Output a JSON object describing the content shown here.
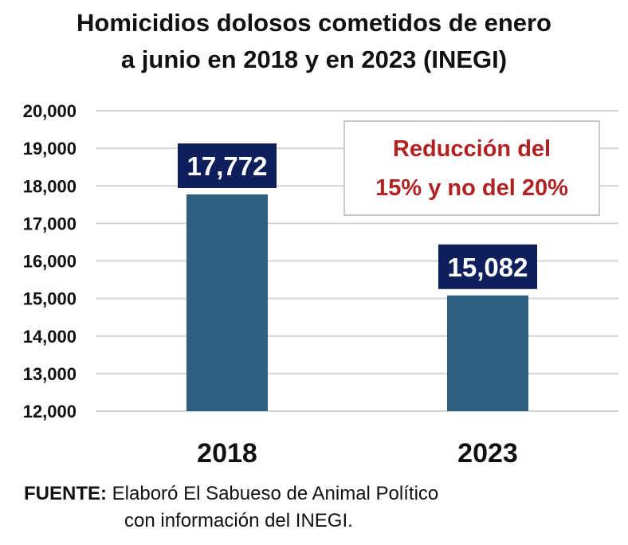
{
  "title": {
    "line1": "Homicidios dolosos cometidos de enero",
    "line2": "a junio en 2018 y en 2023 (INEGI)"
  },
  "annotation": {
    "line1": "Reducción del",
    "line2": "15% y no del 20%",
    "color": "#b22222"
  },
  "source": {
    "label": "FUENTE:",
    "line1": "Elaboró El Sabueso de Animal Político",
    "line2": "con información del INEGI."
  },
  "colors": {
    "bar": "#2e5f80",
    "label_box": "#0f1f5c",
    "grid": "#d4d4d4"
  },
  "chart_data": {
    "type": "bar",
    "categories": [
      "2018",
      "2023"
    ],
    "values": [
      17772,
      15082
    ],
    "value_labels": [
      "17,772",
      "15,082"
    ],
    "ylim": [
      12000,
      20000
    ],
    "yticks": [
      12000,
      13000,
      14000,
      15000,
      16000,
      17000,
      18000,
      19000,
      20000
    ],
    "ytick_labels": [
      "12,000",
      "13,000",
      "14,000",
      "15,000",
      "16,000",
      "17,000",
      "18,000",
      "19,000",
      "20,000"
    ],
    "grid": true,
    "legend": "none"
  }
}
